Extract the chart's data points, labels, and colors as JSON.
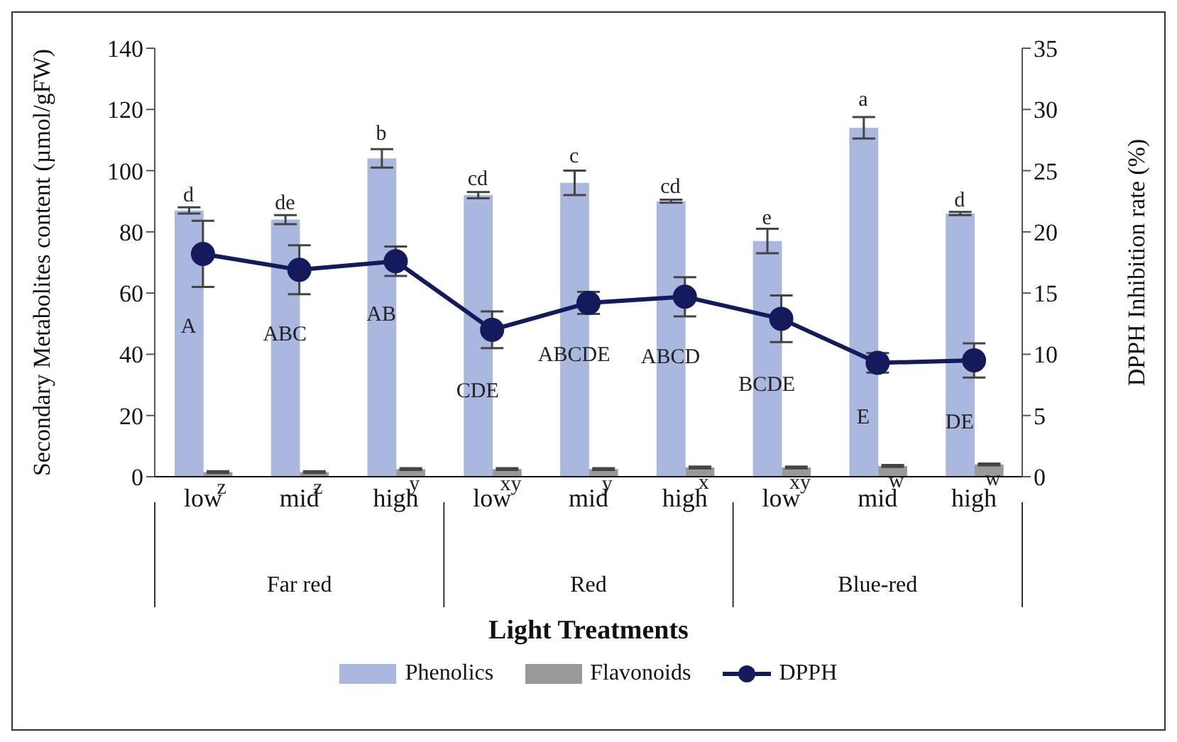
{
  "chart_data": {
    "type": "bar",
    "xlabel": "Light Treatments",
    "ylabel": "Secondary Metabolites content (µmol/gFW)",
    "y2label": "DPPH Inhibition rate (%)",
    "categories": [
      "low",
      "mid",
      "high",
      "low",
      "mid",
      "high",
      "low",
      "mid",
      "high"
    ],
    "series": [
      {
        "name": "Phenolics",
        "color": "#aab8e0",
        "values": [
          87,
          84,
          104,
          92,
          96,
          90,
          77,
          114,
          86
        ],
        "errors": [
          1,
          1.5,
          3,
          1,
          4,
          0.5,
          4,
          3.5,
          0.5
        ]
      },
      {
        "name": "Flavonoids",
        "color": "#999999",
        "values": [
          1.5,
          1.5,
          2.5,
          2.5,
          2.5,
          3,
          3,
          3.5,
          4
        ],
        "errors": [
          0.3,
          0.3,
          0.3,
          0.3,
          0.3,
          0.3,
          0.3,
          0.3,
          0.3
        ]
      },
      {
        "name": "DPPH",
        "type": "line",
        "axis": "y2",
        "color": "#141a5c",
        "marker": "circle",
        "values": [
          18.2,
          16.9,
          17.6,
          12,
          14.2,
          14.7,
          12.9,
          9.3,
          9.5
        ],
        "errors": [
          2.7,
          2,
          1.2,
          1.5,
          0.9,
          1.6,
          1.9,
          0.8,
          1.4
        ]
      }
    ],
    "ylim": [
      0,
      140
    ],
    "yticks": [
      0,
      20,
      40,
      60,
      80,
      100,
      120,
      140
    ],
    "y2lim": [
      0,
      35
    ],
    "y2ticks": [
      0,
      5,
      10,
      15,
      20,
      25,
      30,
      35
    ],
    "grid": false,
    "legend": "bottom",
    "annotations": [
      "d",
      "de",
      "b",
      "cd",
      "c",
      "cd",
      "e",
      "a",
      "d",
      "z",
      "z",
      "y",
      "xy",
      "y",
      "x",
      "xy",
      "w",
      "w",
      "A",
      "ABC",
      "AB",
      "CDE",
      "ABCDE",
      "ABCD",
      "BCDE",
      "E",
      "DE",
      "Far red",
      "Red",
      "Blue-red"
    ]
  }
}
